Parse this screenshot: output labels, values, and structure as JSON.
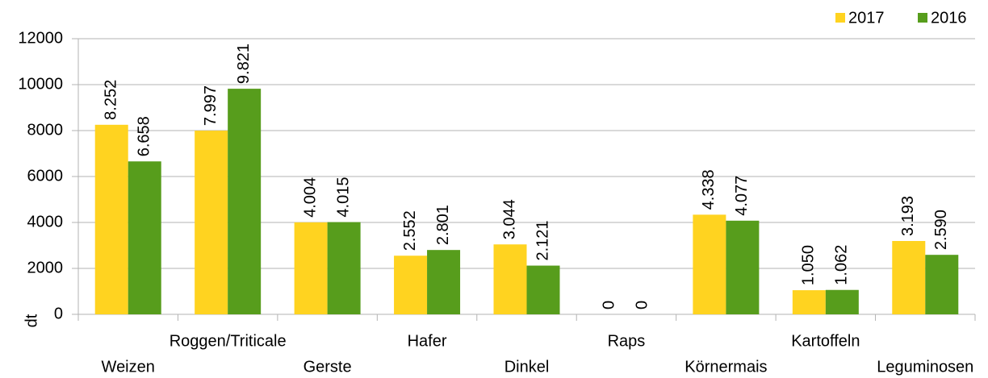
{
  "chart_data": {
    "type": "bar",
    "y_label": "dt",
    "categories": [
      "Weizen",
      "Roggen/Triticale",
      "Gerste",
      "Hafer",
      "Dinkel",
      "Raps",
      "Körnermais",
      "Kartoffeln",
      "Leguminosen"
    ],
    "series": [
      {
        "name": "2017",
        "color": "#ffd320",
        "values": [
          8252,
          7997,
          4004,
          2552,
          3044,
          0,
          4338,
          1050,
          3193
        ],
        "value_labels": [
          "8.252",
          "7.997",
          "4.004",
          "2.552",
          "3.044",
          "0",
          "4.338",
          "1.050",
          "3.193"
        ]
      },
      {
        "name": "2016",
        "color": "#579d1c",
        "values": [
          6658,
          9821,
          4015,
          2801,
          2121,
          0,
          4077,
          1062,
          2590
        ],
        "value_labels": [
          "6.658",
          "9.821",
          "4.015",
          "2.801",
          "2.121",
          "0",
          "4.077",
          "1.062",
          "2.590"
        ]
      }
    ],
    "ylim": [
      0,
      12000
    ],
    "yticks": [
      0,
      2000,
      4000,
      6000,
      8000,
      10000,
      12000
    ],
    "grid": true,
    "legend": "top-right"
  }
}
